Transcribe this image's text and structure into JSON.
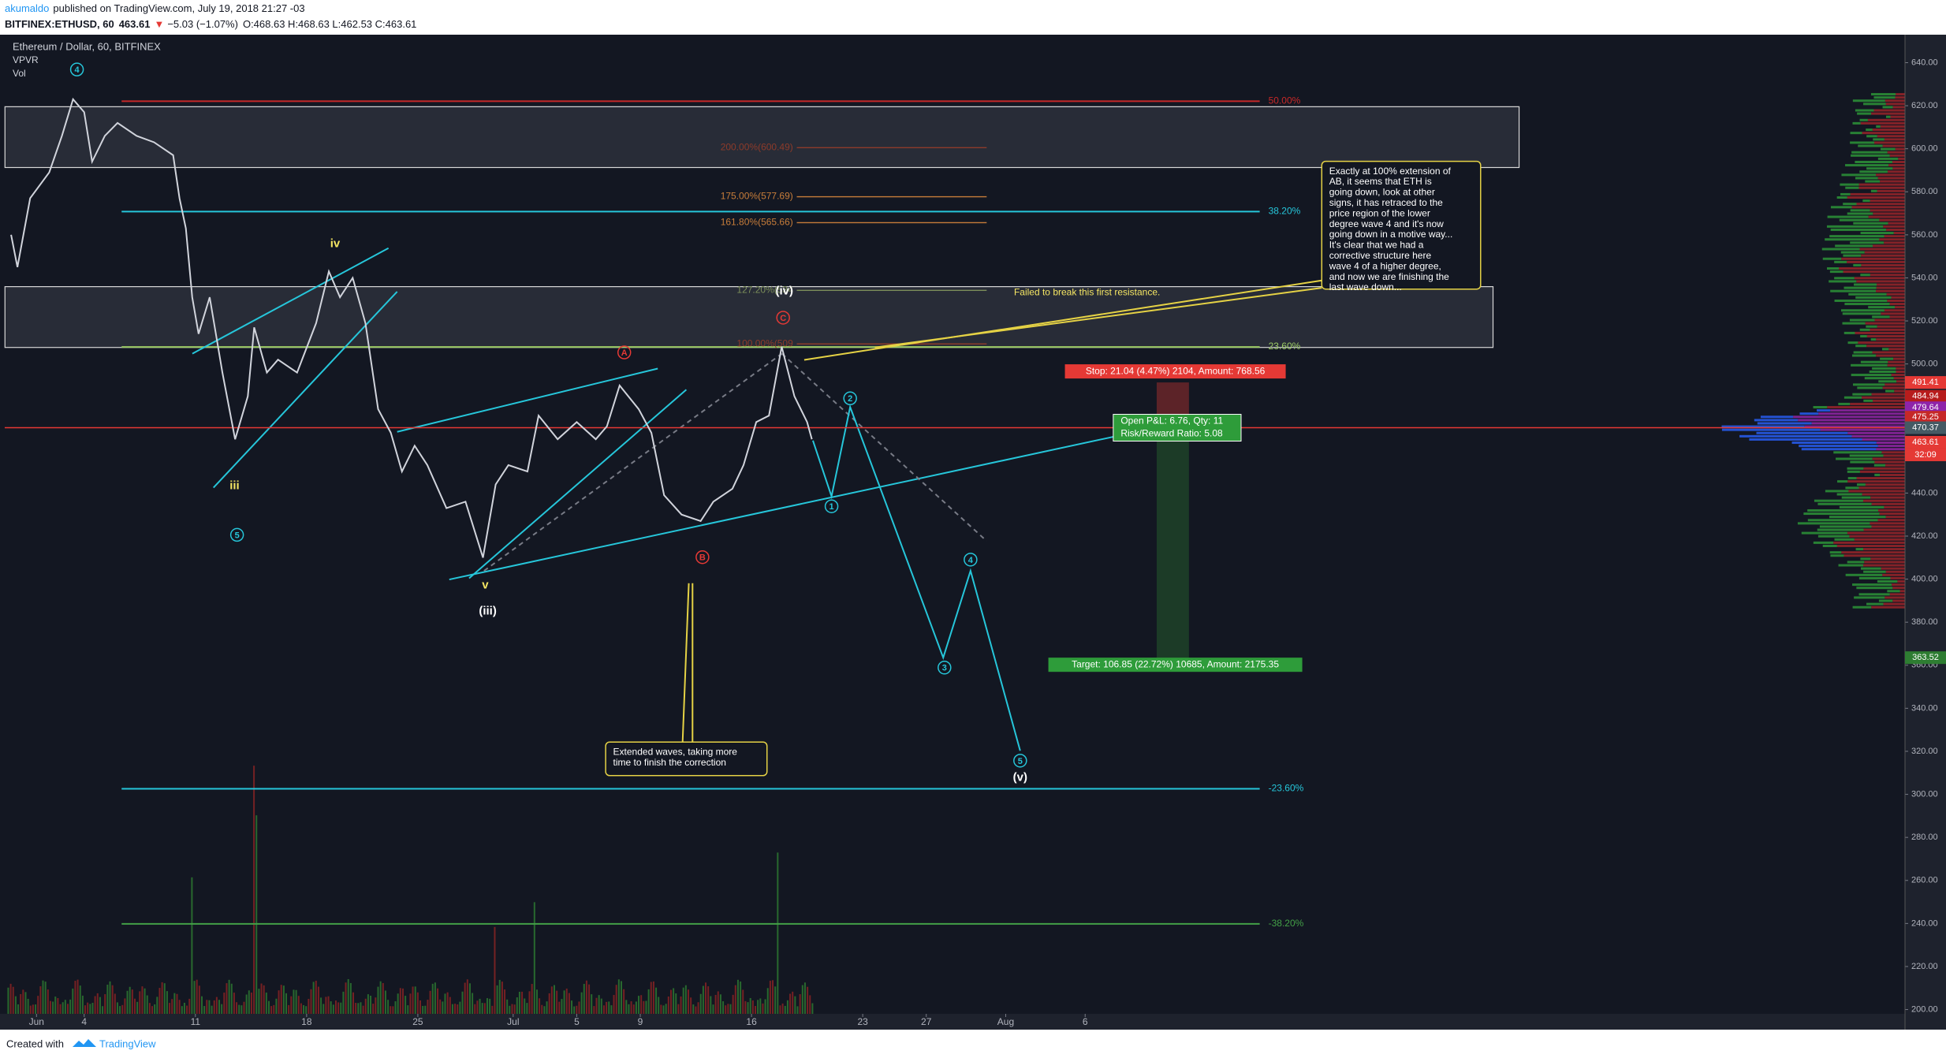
{
  "header": {
    "author": "akumaldo",
    "published": "published on TradingView.com, July 19, 2018 21:27 -03",
    "symbol": "BITFINEX:ETHUSD, 60",
    "last": "463.61",
    "arrow": "▼",
    "change": "−5.03 (−1.07%)",
    "ohlc": "O:468.63 H:468.63 L:462.53 C:463.61"
  },
  "footer": {
    "created": "Created with",
    "brand": "TradingView"
  },
  "chart_data": {
    "type": "line",
    "title": "Ethereum / Dollar, 60, BITFINEX",
    "indicators": [
      "VPVR",
      "Vol"
    ],
    "color": "#d1d4dc",
    "x": [
      150.4,
      150.8,
      151.6,
      152.8,
      153.6,
      154.3,
      155.0,
      155.5,
      156.3,
      157.1,
      158.3,
      159.4,
      160.6,
      161.0,
      161.4,
      161.8,
      162.2,
      162.9,
      163.7,
      164.5,
      165.3,
      165.7,
      166.5,
      167.2,
      168.4,
      169.6,
      170.4,
      171.1,
      171.9,
      172.7,
      173.5,
      174.3,
      175.0,
      175.8,
      176.6,
      177.8,
      179.0,
      180.1,
      180.9,
      181.7,
      182.9,
      183.6,
      184.8,
      186.0,
      187.2,
      187.9,
      188.7,
      189.9,
      190.7,
      191.5,
      192.6,
      193.8,
      194.6,
      195.8,
      196.5,
      197.3,
      198.1,
      198.9,
      199.7,
      200.5,
      200.8
    ],
    "values": [
      560,
      545,
      577,
      589,
      606,
      623,
      617,
      594,
      606,
      612,
      606,
      603,
      597,
      577,
      563,
      531,
      514,
      531,
      496,
      465,
      485,
      517,
      496,
      502,
      496,
      519,
      543,
      531,
      540,
      519,
      479,
      468,
      450,
      462,
      453,
      433,
      436,
      410,
      444,
      453,
      450,
      476,
      465,
      473,
      465,
      471,
      490,
      479,
      468,
      439,
      430,
      427,
      436,
      442,
      453,
      473,
      476,
      508,
      485,
      473,
      465
    ],
    "xlim": [
      150,
      269.6
    ],
    "ylim": [
      198,
      653
    ],
    "xticks": [
      {
        "value": 152,
        "label": "Jun"
      },
      {
        "value": 155,
        "label": "4"
      },
      {
        "value": 162,
        "label": "11"
      },
      {
        "value": 169,
        "label": "18"
      },
      {
        "value": 176,
        "label": "25"
      },
      {
        "value": 182,
        "label": "Jul"
      },
      {
        "value": 186,
        "label": "5"
      },
      {
        "value": 190,
        "label": "9"
      },
      {
        "value": 197,
        "label": "16"
      },
      {
        "value": 204,
        "label": "23"
      },
      {
        "value": 208,
        "label": "27"
      },
      {
        "value": 213,
        "label": "Aug"
      },
      {
        "value": 218,
        "label": "6"
      }
    ],
    "yticks": [
      {
        "value": 200,
        "label": "200.00"
      },
      {
        "value": 220,
        "label": "220.00"
      },
      {
        "value": 240,
        "label": "240.00"
      },
      {
        "value": 260,
        "label": "260.00"
      },
      {
        "value": 280,
        "label": "280.00"
      },
      {
        "value": 300,
        "label": "300.00"
      },
      {
        "value": 320,
        "label": "320.00"
      },
      {
        "value": 340,
        "label": "340.00"
      },
      {
        "value": 360,
        "label": "360.00"
      },
      {
        "value": 380,
        "label": "380.00"
      },
      {
        "value": 400,
        "label": "400.00"
      },
      {
        "value": 420,
        "label": "420.00"
      },
      {
        "value": 440,
        "label": "440.00"
      },
      {
        "value": 460,
        "label": "460.00"
      },
      {
        "value": 480,
        "label": "480.00"
      },
      {
        "value": 500,
        "label": "500.00"
      },
      {
        "value": 520,
        "label": "520.00"
      },
      {
        "value": 540,
        "label": "540.00"
      },
      {
        "value": 560,
        "label": "560.00"
      },
      {
        "value": 580,
        "label": "580.00"
      },
      {
        "value": 600,
        "label": "600.00"
      },
      {
        "value": 620,
        "label": "620.00"
      },
      {
        "value": 640,
        "label": "640.00"
      }
    ],
    "fib_levels": [
      {
        "label": "50.00%",
        "value": 622.1,
        "color": "#c62828"
      },
      {
        "label": "38.20%",
        "value": 570.8,
        "color": "#26c6da"
      },
      {
        "label": "23.60%",
        "value": 507.9,
        "color": "#9ccc65"
      },
      {
        "label": "-23.60%",
        "value": 302.6,
        "color": "#26c6da"
      },
      {
        "label": "-38.20%",
        "value": 239.8,
        "color": "#43a047"
      }
    ],
    "extensions": [
      {
        "label": "200.00%(600.49)",
        "value": 600.49,
        "color": "#8d3b2a"
      },
      {
        "label": "175.00%(577.69)",
        "value": 577.69,
        "color": "#c77d3a"
      },
      {
        "label": "161.80%(565.66)",
        "value": 565.66,
        "color": "#c77d3a"
      },
      {
        "label": "127.20%(534",
        "value": 534.2,
        "color": "#7c8f5a"
      },
      {
        "label": "100.00%(509",
        "value": 509.3,
        "color": "#8d3b2a"
      }
    ],
    "price_tags": [
      {
        "value": 491.41,
        "color": "#e53935"
      },
      {
        "value": 484.94,
        "color": "#b71c1c"
      },
      {
        "value": 479.64,
        "color": "#8e24aa"
      },
      {
        "value": 475.25,
        "color": "#c62828"
      },
      {
        "value": 470.37,
        "color": "#455a64"
      },
      {
        "value": 463.61,
        "color": "#e53935"
      },
      {
        "value": 363.52,
        "color": "#2e7d32"
      }
    ],
    "countdown": "32:09",
    "position": {
      "entry": 470.37,
      "stop": 491.41,
      "target": 363.52,
      "stop_label": "Stop: 21.04 (4.47%) 2104, Amount: 768.56",
      "target_label": "Target: 106.85 (22.72%) 10685, Amount: 2175.35",
      "pnl_label": "Open P&L: 6.76, Qty: 11",
      "ratio_label": "Risk/Reward Ratio: 5.08"
    },
    "annotations": [
      {
        "text": "4",
        "color": "#26c6da",
        "circled": true
      },
      {
        "text": "iv",
        "color": "#f5e663",
        "circled": false
      },
      {
        "text": "iii",
        "color": "#f5e663",
        "circled": false
      },
      {
        "text": "5",
        "color": "#26c6da",
        "circled": true
      },
      {
        "text": "v",
        "color": "#f5e663",
        "circled": false
      },
      {
        "text": "(iii)",
        "color": "#ffffff",
        "circled": false
      },
      {
        "text": "A",
        "color": "#e53935",
        "circled": true
      },
      {
        "text": "B",
        "color": "#e53935",
        "circled": true
      },
      {
        "text": "C",
        "color": "#e53935",
        "circled": true
      },
      {
        "text": "(iv)",
        "color": "#ffffff",
        "circled": false
      },
      {
        "text": "1",
        "color": "#26c6da",
        "circled": true
      },
      {
        "text": "2",
        "color": "#26c6da",
        "circled": true
      },
      {
        "text": "3",
        "color": "#26c6da",
        "circled": true
      },
      {
        "text": "4",
        "color": "#26c6da",
        "circled": true
      },
      {
        "text": "5",
        "color": "#26c6da",
        "circled": true
      },
      {
        "text": "(v)",
        "color": "#ffffff",
        "circled": false
      }
    ],
    "callout": "Failed to break this first resistance.",
    "notes": [
      {
        "lines": [
          "Exactly at 100% extension of",
          "AB, it seems that ETH is",
          "going down, look at other",
          "signs, it has retraced to the",
          "price region of the lower",
          "degree wave 4 and it's now",
          "going down in a motive way...",
          "It's clear that we had a",
          "corrective structure here",
          "wave 4 of a higher degree,",
          "and now we are finishing the",
          "last wave down..."
        ]
      },
      {
        "lines": [
          "Extended waves, taking more",
          "time to finish the correction"
        ]
      }
    ]
  }
}
